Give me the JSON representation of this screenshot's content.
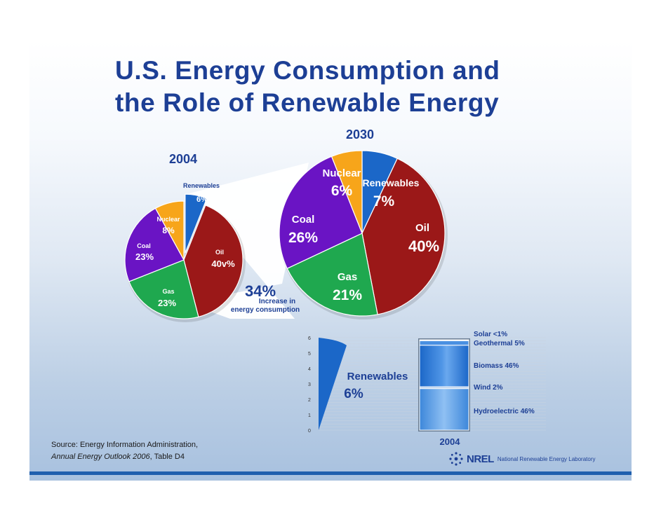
{
  "title": {
    "line1": "U.S. Energy Consumption and",
    "line2": "the Role of Renewable Energy"
  },
  "colors": {
    "oil": "#9b1818",
    "gas": "#1fa84f",
    "coal": "#6a14c4",
    "nuclear": "#f7a51a",
    "renewables": "#1b67c8",
    "title": "#1d3f95"
  },
  "chart_data": [
    {
      "type": "pie",
      "title": "2004",
      "slices": [
        {
          "key": "renewables",
          "label": "Renewables",
          "value_label": "6%",
          "value": 6,
          "exploded": true
        },
        {
          "key": "oil",
          "label": "Oil",
          "value_label": "40v%",
          "value": 40
        },
        {
          "key": "gas",
          "label": "Gas",
          "value_label": "23%",
          "value": 23
        },
        {
          "key": "coal",
          "label": "Coal",
          "value_label": "23%",
          "value": 23
        },
        {
          "key": "nuclear",
          "label": "Nuclear",
          "value_label": "8%",
          "value": 8
        }
      ]
    },
    {
      "type": "pie",
      "title": "2030",
      "annotation": {
        "value": "34%",
        "line1": "Increase in",
        "line2": "energy consumption"
      },
      "slices": [
        {
          "key": "renewables",
          "label": "Renewables",
          "value_label": "7%",
          "value": 7
        },
        {
          "key": "oil",
          "label": "Oil",
          "value_label": "40%",
          "value": 40
        },
        {
          "key": "gas",
          "label": "Gas",
          "value_label": "21%",
          "value": 21
        },
        {
          "key": "coal",
          "label": "Coal",
          "value_label": "26%",
          "value": 26
        },
        {
          "key": "nuclear",
          "label": "Nuclear",
          "value_label": "6%",
          "value": 6
        }
      ]
    },
    {
      "type": "bar",
      "title": "2004",
      "yticks": [
        0,
        1,
        2,
        3,
        4,
        5,
        6
      ],
      "ylim": [
        0,
        6
      ],
      "wedge_label": "Renewables",
      "wedge_value_label": "6%",
      "wedge_value": 6,
      "segments": [
        {
          "label": "Hydroelectric 46%",
          "value": 46
        },
        {
          "label": "Wind 2%",
          "value": 2
        },
        {
          "label": "Biomass 46%",
          "value": 46
        },
        {
          "label": "Geothermal 5%",
          "value": 5
        },
        {
          "label": "Solar <1%",
          "value": 1
        }
      ]
    }
  ],
  "source": {
    "line1": "Source:  Energy Information Administration,",
    "line2_italic": "Annual Energy Outlook 2006",
    "line2_rest": ", Table D4"
  },
  "logo": {
    "name": "NREL",
    "full": "National Renewable Energy Laboratory"
  }
}
